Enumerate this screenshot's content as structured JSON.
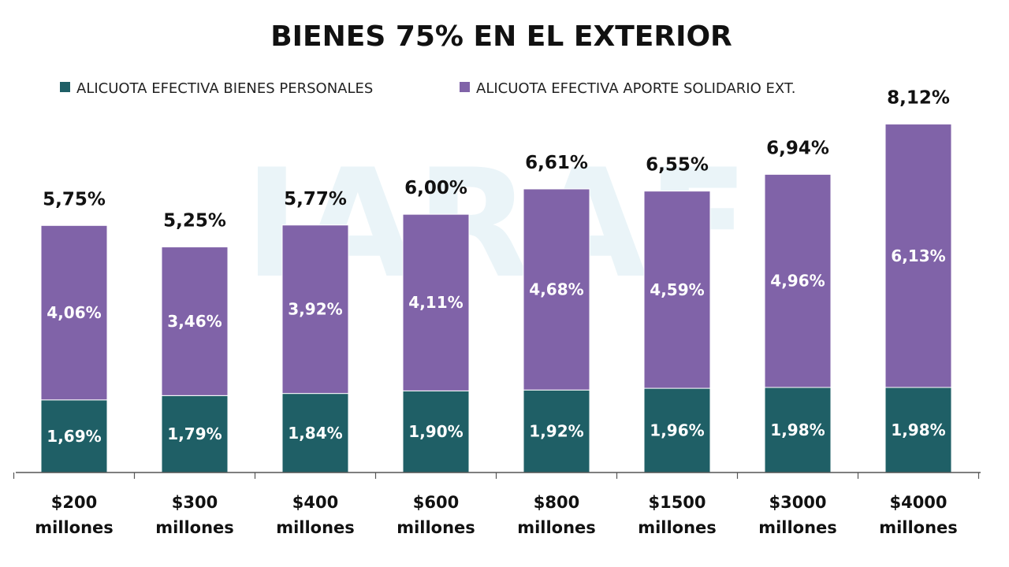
{
  "chart_data": {
    "type": "bar",
    "stacked": true,
    "title": "BIENES 75% EN EL EXTERIOR",
    "categories": [
      [
        "$200",
        "millones"
      ],
      [
        "$300",
        "millones"
      ],
      [
        "$400",
        "millones"
      ],
      [
        "$600",
        "millones"
      ],
      [
        "$800",
        "millones"
      ],
      [
        "$1500",
        "millones"
      ],
      [
        "$3000",
        "millones"
      ],
      [
        "$4000",
        "millones"
      ]
    ],
    "series": [
      {
        "name": "ALICUOTA EFECTIVA BIENES PERSONALES",
        "color": "#1f5f66",
        "values": [
          1.69,
          1.79,
          1.84,
          1.9,
          1.92,
          1.96,
          1.98,
          1.98
        ],
        "labels": [
          "1,69%",
          "1,79%",
          "1,84%",
          "1,90%",
          "1,92%",
          "1,96%",
          "1,98%",
          "1,98%"
        ]
      },
      {
        "name": "ALICUOTA EFECTIVA APORTE SOLIDARIO EXT.",
        "color": "#8063a8",
        "values": [
          4.06,
          3.46,
          3.92,
          4.11,
          4.68,
          4.59,
          4.96,
          6.13
        ],
        "labels": [
          "4,06%",
          "3,46%",
          "3,92%",
          "4,11%",
          "4,68%",
          "4,59%",
          "4,96%",
          "6,13%"
        ]
      }
    ],
    "totals": [
      5.75,
      5.25,
      5.77,
      6.0,
      6.61,
      6.55,
      6.94,
      8.12
    ],
    "total_labels": [
      "5,75%",
      "5,25%",
      "5,77%",
      "6,00%",
      "6,61%",
      "6,55%",
      "6,94%",
      "8,12%"
    ],
    "ylim": [
      0,
      8.12
    ],
    "grid": false,
    "legend_position": "top-left",
    "watermark": "IARAF"
  }
}
